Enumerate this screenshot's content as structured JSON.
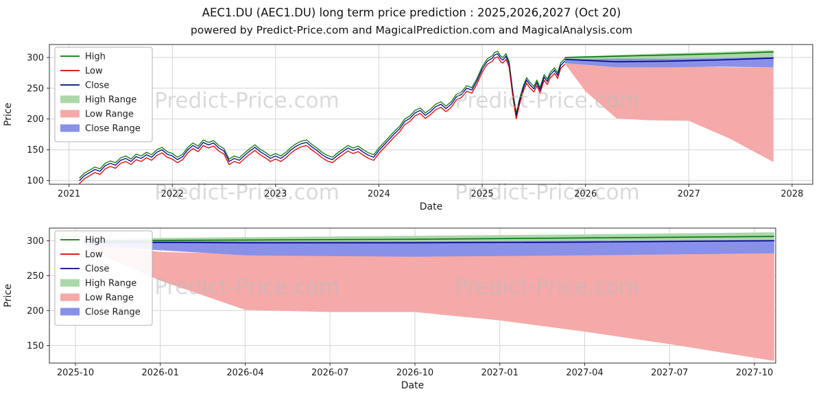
{
  "title": "AEC1.DU (AEC1.DU) long term price prediction : 2025,2026,2027 (Oct 20)",
  "subtitle": "powered by Predict-Price.com and MagicalPrediction.com and MagicalAnalysis.com",
  "watermark": "Predict-Price.com",
  "colors": {
    "high": "#067806",
    "low": "#d40000",
    "close": "#00008b",
    "high_range": "#abd7ab",
    "low_range": "#f5a9a9",
    "close_range": "#8890e8",
    "grid": "#d3d3d3",
    "axis": "#2b2b2b",
    "text": "#1a1a1a",
    "watermark": "#bbbbbb"
  },
  "chart_data": [
    {
      "type": "line",
      "title": "AEC1.DU (AEC1.DU) long term price prediction : 2025,2026,2027 (Oct 20)",
      "xlabel": "Date",
      "ylabel": "Price",
      "xlim": [
        2020.81,
        2028.2
      ],
      "ylim": [
        94,
        321
      ],
      "xticks": [
        {
          "x": 2021,
          "label": "2021"
        },
        {
          "x": 2022,
          "label": "2022"
        },
        {
          "x": 2023,
          "label": "2023"
        },
        {
          "x": 2024,
          "label": "2024"
        },
        {
          "x": 2025,
          "label": "2025"
        },
        {
          "x": 2026,
          "label": "2026"
        },
        {
          "x": 2027,
          "label": "2027"
        },
        {
          "x": 2028,
          "label": "2028"
        }
      ],
      "yticks": [
        100,
        150,
        200,
        250,
        300
      ],
      "legend": [
        {
          "label": "High",
          "type": "line",
          "color": "high"
        },
        {
          "label": "Low",
          "type": "line",
          "color": "low"
        },
        {
          "label": "Close",
          "type": "line",
          "color": "close"
        },
        {
          "label": "High Range",
          "type": "patch",
          "color": "high_range"
        },
        {
          "label": "Low Range",
          "type": "patch",
          "color": "low_range"
        },
        {
          "label": "Close Range",
          "type": "patch",
          "color": "close_range"
        }
      ],
      "history": {
        "high_offset": 4,
        "low_offset": -5,
        "points": [
          [
            2021.1,
            100
          ],
          [
            2021.15,
            108
          ],
          [
            2021.2,
            113
          ],
          [
            2021.25,
            118
          ],
          [
            2021.3,
            115
          ],
          [
            2021.35,
            124
          ],
          [
            2021.4,
            128
          ],
          [
            2021.45,
            125
          ],
          [
            2021.5,
            133
          ],
          [
            2021.55,
            136
          ],
          [
            2021.6,
            131
          ],
          [
            2021.65,
            139
          ],
          [
            2021.7,
            136
          ],
          [
            2021.75,
            142
          ],
          [
            2021.8,
            138
          ],
          [
            2021.85,
            146
          ],
          [
            2021.9,
            150
          ],
          [
            2021.95,
            143
          ],
          [
            2022.0,
            140
          ],
          [
            2022.05,
            134
          ],
          [
            2022.1,
            139
          ],
          [
            2022.15,
            150
          ],
          [
            2022.2,
            157
          ],
          [
            2022.25,
            152
          ],
          [
            2022.3,
            162
          ],
          [
            2022.35,
            158
          ],
          [
            2022.4,
            161
          ],
          [
            2022.45,
            153
          ],
          [
            2022.5,
            148
          ],
          [
            2022.55,
            131
          ],
          [
            2022.6,
            136
          ],
          [
            2022.65,
            133
          ],
          [
            2022.7,
            141
          ],
          [
            2022.75,
            148
          ],
          [
            2022.8,
            154
          ],
          [
            2022.85,
            147
          ],
          [
            2022.9,
            142
          ],
          [
            2022.95,
            136
          ],
          [
            2023.0,
            140
          ],
          [
            2023.05,
            136
          ],
          [
            2023.1,
            142
          ],
          [
            2023.15,
            150
          ],
          [
            2023.2,
            156
          ],
          [
            2023.25,
            160
          ],
          [
            2023.3,
            162
          ],
          [
            2023.35,
            155
          ],
          [
            2023.4,
            149
          ],
          [
            2023.45,
            142
          ],
          [
            2023.5,
            137
          ],
          [
            2023.55,
            134
          ],
          [
            2023.6,
            141
          ],
          [
            2023.65,
            147
          ],
          [
            2023.7,
            153
          ],
          [
            2023.75,
            149
          ],
          [
            2023.8,
            152
          ],
          [
            2023.85,
            146
          ],
          [
            2023.9,
            141
          ],
          [
            2023.95,
            138
          ],
          [
            2024.0,
            149
          ],
          [
            2024.05,
            158
          ],
          [
            2024.1,
            167
          ],
          [
            2024.15,
            176
          ],
          [
            2024.2,
            184
          ],
          [
            2024.25,
            196
          ],
          [
            2024.3,
            201
          ],
          [
            2024.35,
            210
          ],
          [
            2024.4,
            214
          ],
          [
            2024.45,
            206
          ],
          [
            2024.5,
            212
          ],
          [
            2024.55,
            220
          ],
          [
            2024.6,
            224
          ],
          [
            2024.65,
            217
          ],
          [
            2024.7,
            224
          ],
          [
            2024.75,
            236
          ],
          [
            2024.8,
            240
          ],
          [
            2024.85,
            250
          ],
          [
            2024.9,
            247
          ],
          [
            2024.95,
            262
          ],
          [
            2025.0,
            281
          ],
          [
            2025.05,
            294
          ],
          [
            2025.1,
            299
          ],
          [
            2025.12,
            304
          ],
          [
            2025.15,
            306
          ],
          [
            2025.18,
            298
          ],
          [
            2025.2,
            296
          ],
          [
            2025.23,
            302
          ],
          [
            2025.26,
            290
          ],
          [
            2025.3,
            237
          ],
          [
            2025.33,
            205
          ],
          [
            2025.36,
            228
          ],
          [
            2025.4,
            251
          ],
          [
            2025.43,
            263
          ],
          [
            2025.46,
            256
          ],
          [
            2025.5,
            249
          ],
          [
            2025.53,
            259
          ],
          [
            2025.56,
            247
          ],
          [
            2025.6,
            268
          ],
          [
            2025.63,
            261
          ],
          [
            2025.66,
            272
          ],
          [
            2025.7,
            279
          ],
          [
            2025.73,
            271
          ],
          [
            2025.76,
            287
          ],
          [
            2025.8,
            294
          ]
        ]
      },
      "bands": [
        {
          "color": "high_range",
          "x": [
            2025.8,
            2026.3,
            2026.8,
            2027.3,
            2027.82
          ],
          "upper": [
            301,
            304,
            307,
            309,
            312
          ],
          "lower": [
            296,
            297,
            298,
            299,
            300
          ]
        },
        {
          "color": "low_range",
          "x": [
            2025.8,
            2026.0,
            2026.3,
            2026.6,
            2027.0,
            2027.4,
            2027.82
          ],
          "upper": [
            293,
            288,
            284,
            284,
            285,
            284,
            284
          ],
          "lower": [
            290,
            245,
            201,
            198,
            197,
            168,
            130
          ]
        },
        {
          "color": "close_range",
          "x": [
            2025.8,
            2026.3,
            2026.8,
            2027.3,
            2027.82
          ],
          "upper": [
            297,
            298,
            298,
            299,
            301
          ],
          "lower": [
            291,
            284,
            284,
            285,
            284
          ]
        }
      ],
      "pred_lines": [
        {
          "color": "high",
          "points": [
            [
              2025.8,
              300
            ],
            [
              2026.3,
              302
            ],
            [
              2026.8,
              304
            ],
            [
              2027.3,
              306
            ],
            [
              2027.82,
              309
            ]
          ]
        },
        {
          "color": "close",
          "points": [
            [
              2025.8,
              297
            ],
            [
              2026.3,
              293
            ],
            [
              2026.8,
              294
            ],
            [
              2027.3,
              296
            ],
            [
              2027.82,
              299
            ]
          ]
        }
      ],
      "watermarks": [
        {
          "fx": 0.3,
          "fy": 0.4
        },
        {
          "fx": 0.665,
          "fy": 0.4
        },
        {
          "fx": 0.3,
          "fy": 0.915
        },
        {
          "fx": 0.665,
          "fy": 0.915
        }
      ]
    },
    {
      "type": "line",
      "title": "",
      "xlabel": "Date",
      "ylabel": "Price",
      "xlim": [
        -0.92,
        24.75
      ],
      "ylim": [
        125,
        318
      ],
      "xticks": [
        {
          "x": 0,
          "label": "2025-10"
        },
        {
          "x": 3,
          "label": "2026-01"
        },
        {
          "x": 6,
          "label": "2026-04"
        },
        {
          "x": 9,
          "label": "2026-07"
        },
        {
          "x": 12,
          "label": "2026-10"
        },
        {
          "x": 15,
          "label": "2027-01"
        },
        {
          "x": 18,
          "label": "2027-04"
        },
        {
          "x": 21,
          "label": "2027-07"
        },
        {
          "x": 24,
          "label": "2027-10"
        }
      ],
      "yticks": [
        150,
        200,
        250,
        300
      ],
      "legend": [
        {
          "label": "High",
          "type": "line",
          "color": "high"
        },
        {
          "label": "Low",
          "type": "line",
          "color": "low"
        },
        {
          "label": "Close",
          "type": "line",
          "color": "close"
        },
        {
          "label": "High Range",
          "type": "patch",
          "color": "high_range"
        },
        {
          "label": "Low Range",
          "type": "patch",
          "color": "low_range"
        },
        {
          "label": "Close Range",
          "type": "patch",
          "color": "close_range"
        }
      ],
      "bands": [
        {
          "color": "high_range",
          "x": [
            0.3,
            6,
            12,
            18,
            24.7
          ],
          "upper": [
            303,
            305,
            307,
            309,
            312
          ],
          "lower": [
            297,
            297,
            298,
            299,
            300
          ]
        },
        {
          "color": "low_range",
          "x": [
            0.3,
            3,
            6,
            9,
            12,
            15,
            18,
            21,
            24.7
          ],
          "upper": [
            295,
            284,
            281,
            280,
            281,
            281,
            282,
            282,
            283
          ],
          "lower": [
            291,
            243,
            201,
            198,
            198,
            186,
            170,
            152,
            128
          ]
        },
        {
          "color": "close_range",
          "x": [
            0.3,
            6,
            12,
            18,
            24.7
          ],
          "upper": [
            301,
            299,
            299,
            300,
            301
          ],
          "lower": [
            293,
            279,
            277,
            279,
            282
          ]
        }
      ],
      "pred_lines": [
        {
          "color": "high",
          "points": [
            [
              0.3,
              300
            ],
            [
              6,
              301
            ],
            [
              12,
              302
            ],
            [
              18,
              304
            ],
            [
              24.7,
              306
            ]
          ]
        },
        {
          "color": "close",
          "points": [
            [
              0.3,
              298
            ],
            [
              6,
              297
            ],
            [
              12,
              297
            ],
            [
              18,
              298
            ],
            [
              24.7,
              300
            ]
          ]
        }
      ],
      "watermarks": [
        {
          "fx": 0.3,
          "fy": 0.41
        },
        {
          "fx": 0.665,
          "fy": 0.41
        }
      ]
    }
  ]
}
